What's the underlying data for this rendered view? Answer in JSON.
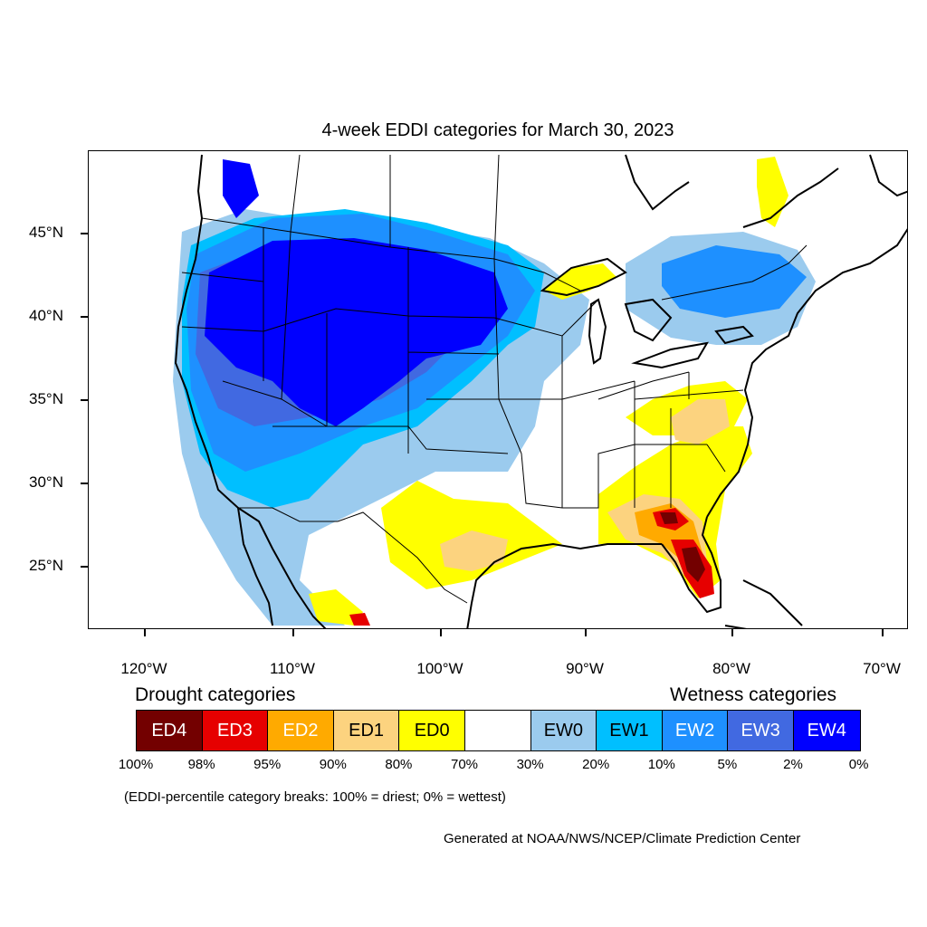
{
  "title": "4-week EDDI categories for March 30, 2023",
  "lat_labels": [
    "45°N",
    "40°N",
    "35°N",
    "30°N",
    "25°N"
  ],
  "lon_labels": [
    "120°W",
    "110°W",
    "100°W",
    "90°W",
    "80°W",
    "70°W"
  ],
  "legend": {
    "drought_heading": "Drought categories",
    "wetness_heading": "Wetness categories",
    "categories": [
      {
        "label": "ED4",
        "color": "#730000",
        "text_color": "#ffffff"
      },
      {
        "label": "ED3",
        "color": "#e60000",
        "text_color": "#ffffff"
      },
      {
        "label": "ED2",
        "color": "#ffaa00",
        "text_color": "#ffffff"
      },
      {
        "label": "ED1",
        "color": "#fcd37f",
        "text_color": "#000000"
      },
      {
        "label": "ED0",
        "color": "#ffff00",
        "text_color": "#000000"
      },
      {
        "label": "",
        "color": "#ffffff",
        "text_color": "#000000"
      },
      {
        "label": "EW0",
        "color": "#9bcbee",
        "text_color": "#000000"
      },
      {
        "label": "EW1",
        "color": "#00bfff",
        "text_color": "#000000"
      },
      {
        "label": "EW2",
        "color": "#1e90ff",
        "text_color": "#ffffff"
      },
      {
        "label": "EW3",
        "color": "#4169e1",
        "text_color": "#ffffff"
      },
      {
        "label": "EW4",
        "color": "#0000ff",
        "text_color": "#ffffff"
      }
    ],
    "percentiles": [
      "100%",
      "98%",
      "95%",
      "90%",
      "80%",
      "70%",
      "30%",
      "20%",
      "10%",
      "5%",
      "2%",
      "0%"
    ]
  },
  "breaks_note": "(EDDI-percentile category breaks: 100% = driest; 0% = wettest)",
  "credit": "Generated at NOAA/NWS/NCEP/Climate Prediction Center"
}
